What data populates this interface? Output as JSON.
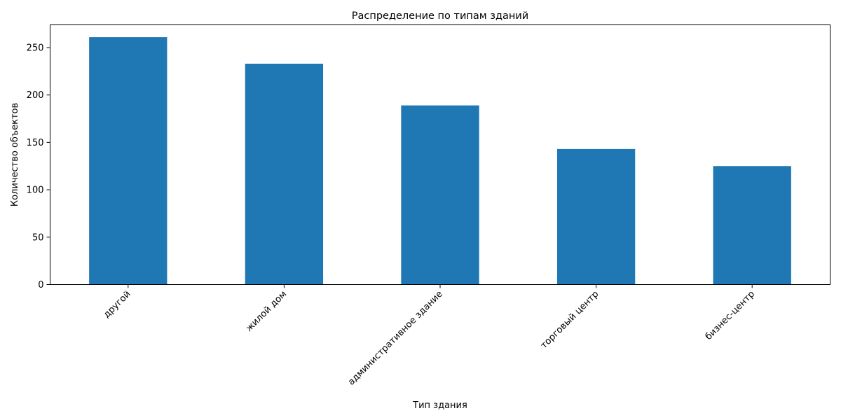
{
  "chart_data": {
    "type": "bar",
    "title": "Распределение по типам зданий",
    "xlabel": "Тип здания",
    "ylabel": "Количество объектов",
    "categories": [
      "другой",
      "жилой дом",
      "административное здание",
      "торговый центр",
      "бизнес-центр"
    ],
    "values": [
      261,
      233,
      189,
      143,
      125
    ],
    "ylim": [
      0,
      274
    ],
    "yticks": [
      0,
      50,
      100,
      150,
      200,
      250
    ],
    "bar_color": "#1f77b4",
    "grid": false,
    "legend": "none"
  }
}
